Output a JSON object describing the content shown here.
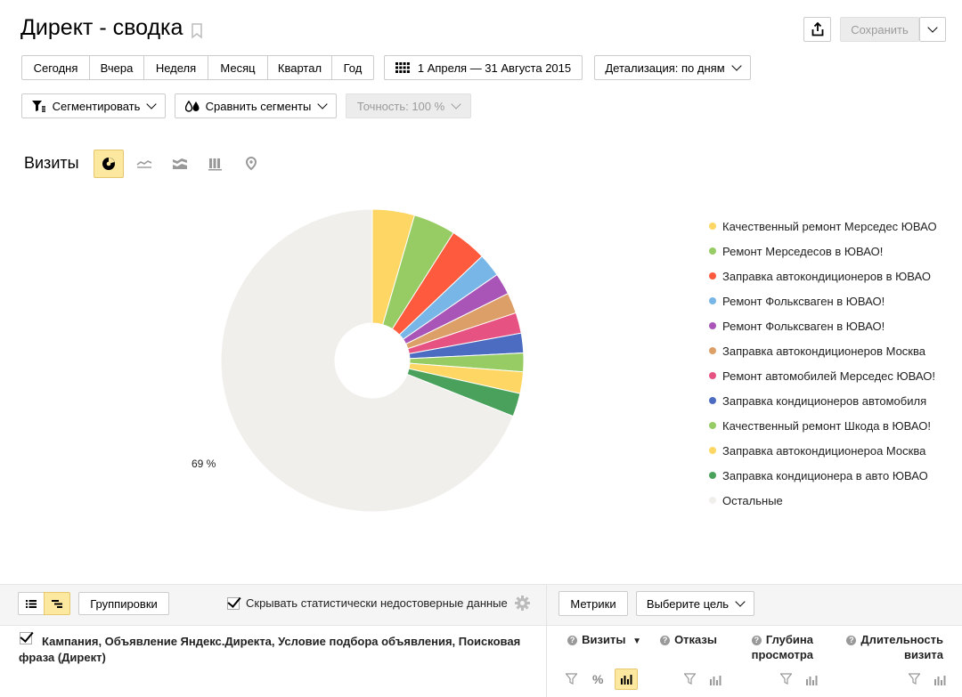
{
  "header": {
    "title": "Директ - сводка",
    "save_label": "Сохранить"
  },
  "periods": [
    "Сегодня",
    "Вчера",
    "Неделя",
    "Месяц",
    "Квартал",
    "Год"
  ],
  "date_range": "1 Апреля — 31 Августа 2015",
  "detail_label": "Детализация: по дням",
  "segment_label": "Сегментировать",
  "compare_label": "Сравнить сегменты",
  "accuracy_label": "Точность: 100 %",
  "chart_title": "Визиты",
  "chart_types": [
    "pie-chart-icon",
    "line-chart-icon",
    "area-chart-icon",
    "bar-chart-icon",
    "map-icon"
  ],
  "chart_data": {
    "type": "pie",
    "title": "Визиты",
    "slices": [
      {
        "label": "Качественный ремонт Мерседес ЮВАО",
        "value": 4.5,
        "color": "#fdd663"
      },
      {
        "label": "Ремонт Мерседесов в ЮВАО!",
        "value": 4.5,
        "color": "#97cc64"
      },
      {
        "label": "Заправка автокондиционеров в ЮВАО",
        "value": 3.9,
        "color": "#fe5a3d"
      },
      {
        "label": "Ремонт Фольксваген в ЮВАО!",
        "value": 2.5,
        "color": "#77b6e7"
      },
      {
        "label": "Ремонт Фольксваген в ЮВАО!",
        "value": 2.3,
        "color": "#a955b8"
      },
      {
        "label": "Заправка автокондиционеров Москва",
        "value": 2.2,
        "color": "#dd9f68"
      },
      {
        "label": "Ремонт автомобилей Мерседес ЮВАО!",
        "value": 2.2,
        "color": "#e65383"
      },
      {
        "label": "Заправка кондиционеров автомобиля",
        "value": 2.1,
        "color": "#4b6cc1"
      },
      {
        "label": "Качественный ремонт Шкода в ЮВАО!",
        "value": 2.0,
        "color": "#97cc64"
      },
      {
        "label": "Заправка автокондиционероа Москва",
        "value": 2.3,
        "color": "#fdd663"
      },
      {
        "label": "Заправка кондиционера в авто ЮВАО",
        "value": 2.5,
        "color": "#4aa15c"
      },
      {
        "label": "Остальные",
        "value": 69.0,
        "color": "#f0efeb"
      }
    ],
    "data_labels": [
      {
        "slice": "Остальные",
        "text": "69 %"
      }
    ]
  },
  "table": {
    "groupings_label": "Группировки",
    "hide_unreliable_label": "Скрывать статистически недостоверные данные",
    "metrics_label": "Метрики",
    "goal_label": "Выберите цель",
    "dimension_label": "Кампания, Объявление Яндекс.Директа, Условие подбора объявления, Поисковая фраза (Директ)",
    "columns": [
      {
        "line1": "Визиты",
        "line2": "",
        "sorted": "▼"
      },
      {
        "line1": "Отказы",
        "line2": "",
        "sorted": ""
      },
      {
        "line1": "Глубина",
        "line2": "просмотра",
        "sorted": ""
      },
      {
        "line1": "Длительность",
        "line2": "визита",
        "sorted": ""
      }
    ],
    "percent_label": "%"
  }
}
